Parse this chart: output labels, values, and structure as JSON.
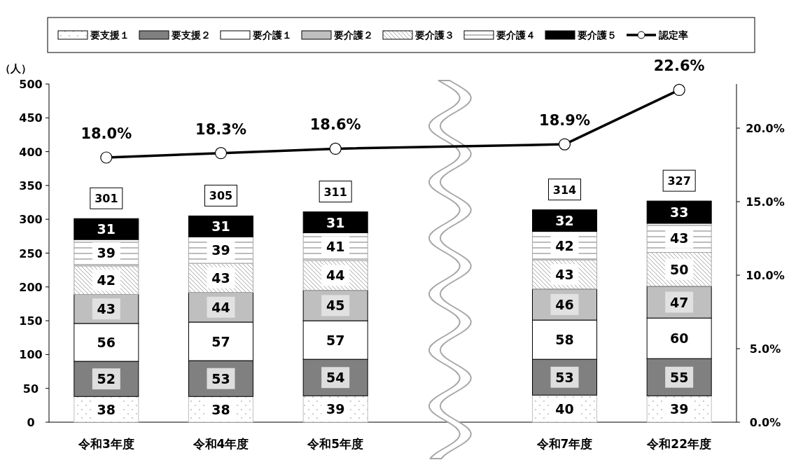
{
  "chart_data": {
    "type": "bar",
    "stacked": true,
    "categories": [
      "令和3年度",
      "令和4年度",
      "令和5年度",
      null,
      "令和7年度",
      "令和22年度"
    ],
    "ylabel": "（人）",
    "ylim": [
      0,
      500
    ],
    "yticks": [
      0,
      50,
      100,
      150,
      200,
      250,
      300,
      350,
      400,
      450,
      500
    ],
    "y2lim": [
      0,
      23
    ],
    "y2ticks": [
      {
        "value": 0,
        "label": "0.0%"
      },
      {
        "value": 5,
        "label": "5.0%"
      },
      {
        "value": 10,
        "label": "10.0%"
      },
      {
        "value": 15,
        "label": "15.0%"
      },
      {
        "value": 20,
        "label": "20.0%"
      }
    ],
    "legend": "top",
    "data_labels": true,
    "marker": "circle",
    "totals": [
      "301",
      "305",
      "311",
      null,
      "314",
      "327"
    ],
    "series": [
      {
        "name": "要支援１",
        "color": "#bfbfbf",
        "values": [
          38,
          38,
          39,
          null,
          40,
          39
        ]
      },
      {
        "name": "要支援２",
        "color": "#808080",
        "values": [
          52,
          53,
          54,
          null,
          53,
          55
        ]
      },
      {
        "name": "要介護１",
        "color": "#ffffff",
        "values": [
          56,
          57,
          57,
          null,
          58,
          60
        ]
      },
      {
        "name": "要介護２",
        "color": "#bfbfbf",
        "values": [
          43,
          44,
          45,
          null,
          46,
          47
        ]
      },
      {
        "name": "要介護３",
        "color": "#a6a6a6",
        "values": [
          42,
          43,
          44,
          null,
          43,
          50
        ]
      },
      {
        "name": "要介護４",
        "color": "#a6a6a6",
        "values": [
          39,
          39,
          41,
          null,
          42,
          43
        ]
      },
      {
        "name": "要介護５",
        "color": "#000000",
        "values": [
          31,
          31,
          31,
          null,
          32,
          33
        ]
      },
      {
        "name": "認定率",
        "type": "line",
        "axis": "y2",
        "color": "#000000",
        "values": [
          18.0,
          18.3,
          18.6,
          null,
          18.9,
          22.6
        ],
        "value_labels": [
          "18.0%",
          "18.3%",
          "18.6%",
          null,
          "18.9%",
          "22.6%"
        ]
      }
    ]
  }
}
